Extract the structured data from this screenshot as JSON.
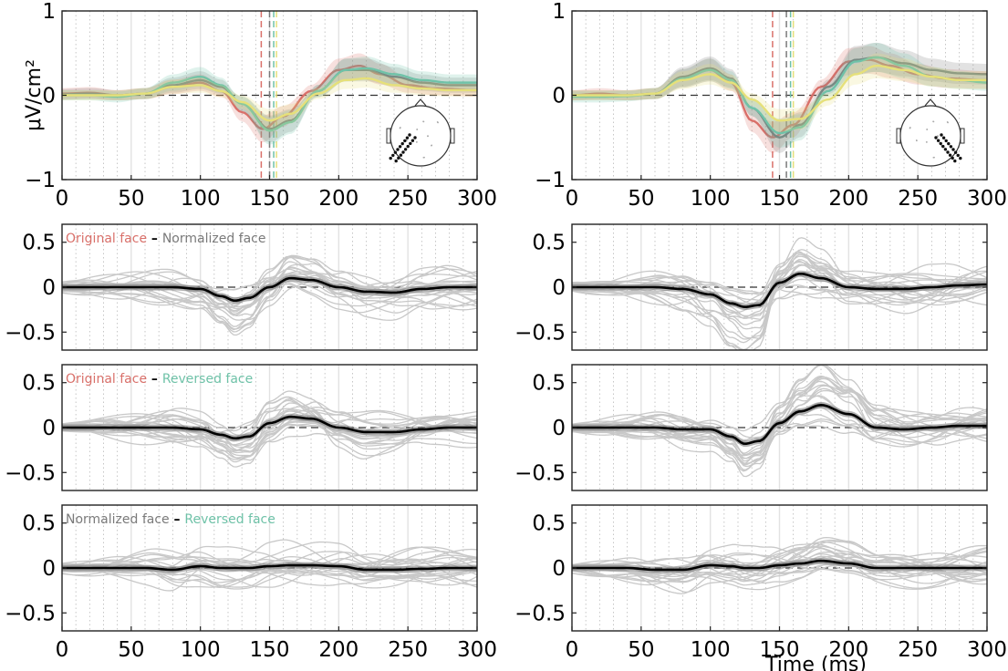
{
  "figure": {
    "ylabel_top": "μV/cm²",
    "xlabel_bottom": "Time (ms)",
    "colors": {
      "original": "#d9706a",
      "normalized": "#7a7a7a",
      "reversed": "#6fc2a8",
      "yellow": "#e6e07a",
      "individual": "#c8c8c8",
      "mean": "#000000"
    }
  },
  "chart_data": [
    {
      "type": "line",
      "panel": "top-left",
      "xlim": [
        0,
        300
      ],
      "ylim": [
        -1,
        1
      ],
      "xticks": [
        0,
        50,
        100,
        150,
        200,
        250,
        300
      ],
      "yticks": [
        -1,
        0,
        1
      ],
      "ylabel": "μV/cm²",
      "vlines": [
        144,
        150,
        153,
        155
      ],
      "series": [
        {
          "color": "original",
          "x": [
            0,
            20,
            40,
            60,
            80,
            100,
            115,
            130,
            145,
            160,
            180,
            200,
            215,
            230,
            250,
            270,
            300
          ],
          "y": [
            0.02,
            0.03,
            0.0,
            0.02,
            0.1,
            0.15,
            0.05,
            -0.2,
            -0.4,
            -0.25,
            0.05,
            0.3,
            0.35,
            0.25,
            0.12,
            0.08,
            0.06
          ]
        },
        {
          "color": "normalized",
          "x": [
            0,
            20,
            40,
            60,
            80,
            100,
            115,
            130,
            150,
            165,
            185,
            205,
            220,
            240,
            260,
            280,
            300
          ],
          "y": [
            0.01,
            0.02,
            0.0,
            0.02,
            0.12,
            0.18,
            0.1,
            -0.1,
            -0.4,
            -0.3,
            0.05,
            0.3,
            0.3,
            0.22,
            0.15,
            0.12,
            0.12
          ]
        },
        {
          "color": "reversed",
          "x": [
            0,
            20,
            40,
            60,
            80,
            100,
            115,
            130,
            150,
            165,
            185,
            205,
            220,
            240,
            260,
            280,
            300
          ],
          "y": [
            0.0,
            0.0,
            -0.02,
            0.02,
            0.15,
            0.22,
            0.12,
            -0.1,
            -0.42,
            -0.32,
            0.05,
            0.3,
            0.32,
            0.25,
            0.18,
            0.15,
            0.15
          ]
        },
        {
          "color": "yellow",
          "x": [
            0,
            20,
            40,
            60,
            80,
            100,
            115,
            130,
            150,
            165,
            185,
            205,
            220,
            240,
            260,
            280,
            300
          ],
          "y": [
            0.0,
            0.0,
            0.0,
            0.02,
            0.1,
            0.12,
            0.05,
            -0.08,
            -0.3,
            -0.22,
            0.02,
            0.18,
            0.2,
            0.12,
            0.08,
            0.06,
            0.06
          ]
        }
      ],
      "inset": "headplot-left"
    },
    {
      "type": "line",
      "panel": "top-right",
      "xlim": [
        0,
        300
      ],
      "ylim": [
        -1,
        1
      ],
      "xticks": [
        0,
        50,
        100,
        150,
        200,
        250,
        300
      ],
      "yticks": [
        -1,
        0,
        1
      ],
      "vlines": [
        145,
        155,
        158,
        160
      ],
      "series": [
        {
          "color": "original",
          "x": [
            0,
            20,
            40,
            60,
            80,
            100,
            115,
            130,
            145,
            160,
            180,
            200,
            215,
            230,
            250,
            270,
            300
          ],
          "y": [
            0.0,
            0.02,
            0.0,
            0.02,
            0.2,
            0.3,
            0.15,
            -0.3,
            -0.5,
            -0.35,
            0.1,
            0.4,
            0.42,
            0.35,
            0.25,
            0.2,
            0.18
          ]
        },
        {
          "color": "normalized",
          "x": [
            0,
            20,
            40,
            60,
            80,
            100,
            115,
            130,
            150,
            165,
            185,
            205,
            220,
            240,
            260,
            280,
            300
          ],
          "y": [
            0.0,
            0.0,
            0.0,
            0.02,
            0.22,
            0.32,
            0.2,
            -0.15,
            -0.5,
            -0.35,
            0.1,
            0.42,
            0.45,
            0.38,
            0.3,
            0.26,
            0.25
          ]
        },
        {
          "color": "reversed",
          "x": [
            0,
            20,
            40,
            60,
            80,
            100,
            115,
            130,
            150,
            165,
            185,
            205,
            220,
            240,
            260,
            280,
            300
          ],
          "y": [
            -0.02,
            -0.02,
            -0.01,
            0.02,
            0.2,
            0.3,
            0.18,
            -0.15,
            -0.45,
            -0.38,
            0.05,
            0.4,
            0.45,
            0.35,
            0.22,
            0.18,
            0.15
          ]
        },
        {
          "color": "yellow",
          "x": [
            0,
            20,
            40,
            60,
            80,
            100,
            115,
            130,
            150,
            165,
            185,
            205,
            220,
            240,
            260,
            280,
            300
          ],
          "y": [
            0.0,
            0.0,
            0.0,
            0.02,
            0.18,
            0.25,
            0.15,
            -0.05,
            -0.3,
            -0.28,
            -0.05,
            0.25,
            0.35,
            0.3,
            0.22,
            0.18,
            0.18
          ]
        }
      ],
      "inset": "headplot-right"
    },
    {
      "type": "line",
      "panel": "row2-left",
      "xlim": [
        0,
        300
      ],
      "ylim": [
        -0.7,
        0.7
      ],
      "yticks": [
        -0.5,
        0,
        0.5
      ],
      "legend": [
        "Original face",
        "Normalized face"
      ],
      "mean": {
        "x": [
          0,
          20,
          40,
          60,
          80,
          100,
          115,
          125,
          135,
          150,
          165,
          180,
          200,
          220,
          240,
          260,
          280,
          300
        ],
        "y": [
          0.0,
          0.0,
          0.0,
          0.0,
          0.0,
          -0.02,
          -0.1,
          -0.15,
          -0.12,
          0.0,
          0.1,
          0.08,
          0.0,
          -0.05,
          -0.06,
          -0.02,
          0.0,
          0.0
        ]
      }
    },
    {
      "type": "line",
      "panel": "row2-right",
      "xlim": [
        0,
        300
      ],
      "ylim": [
        -0.7,
        0.7
      ],
      "yticks": [
        -0.5,
        0,
        0.5
      ],
      "mean": {
        "x": [
          0,
          20,
          40,
          60,
          80,
          100,
          115,
          125,
          135,
          150,
          165,
          180,
          200,
          220,
          240,
          260,
          280,
          300
        ],
        "y": [
          0.0,
          0.0,
          0.0,
          0.0,
          -0.02,
          -0.08,
          -0.18,
          -0.22,
          -0.2,
          0.05,
          0.15,
          0.1,
          0.0,
          -0.02,
          -0.02,
          0.0,
          0.02,
          0.03
        ]
      }
    },
    {
      "type": "line",
      "panel": "row3-left",
      "xlim": [
        0,
        300
      ],
      "ylim": [
        -0.7,
        0.7
      ],
      "yticks": [
        -0.5,
        0,
        0.5
      ],
      "legend": [
        "Original face",
        "Reversed face"
      ],
      "mean": {
        "x": [
          0,
          20,
          40,
          60,
          80,
          100,
          115,
          125,
          135,
          150,
          165,
          180,
          200,
          220,
          240,
          260,
          280,
          300
        ],
        "y": [
          0.0,
          0.0,
          0.0,
          0.0,
          0.0,
          -0.02,
          -0.08,
          -0.12,
          -0.1,
          0.05,
          0.12,
          0.1,
          0.0,
          -0.05,
          -0.05,
          -0.02,
          0.0,
          0.0
        ]
      }
    },
    {
      "type": "line",
      "panel": "row3-right",
      "xlim": [
        0,
        300
      ],
      "ylim": [
        -0.7,
        0.7
      ],
      "yticks": [
        -0.5,
        0,
        0.5
      ],
      "mean": {
        "x": [
          0,
          20,
          40,
          60,
          80,
          100,
          115,
          125,
          135,
          150,
          165,
          180,
          200,
          220,
          240,
          260,
          280,
          300
        ],
        "y": [
          0.0,
          0.0,
          0.0,
          0.0,
          -0.02,
          -0.02,
          -0.1,
          -0.18,
          -0.15,
          0.05,
          0.18,
          0.25,
          0.15,
          0.0,
          -0.02,
          0.0,
          0.02,
          0.02
        ]
      }
    },
    {
      "type": "line",
      "panel": "row4-left",
      "xlim": [
        0,
        300
      ],
      "ylim": [
        -0.7,
        0.7
      ],
      "yticks": [
        -0.5,
        0,
        0.5
      ],
      "xticks": [
        0,
        50,
        100,
        150,
        200,
        250,
        300
      ],
      "legend": [
        "Normalized face",
        "Reversed face"
      ],
      "mean": {
        "x": [
          0,
          20,
          40,
          60,
          80,
          100,
          115,
          125,
          135,
          150,
          165,
          180,
          200,
          220,
          240,
          260,
          280,
          300
        ],
        "y": [
          0.0,
          0.0,
          0.0,
          0.0,
          -0.02,
          0.02,
          0.0,
          0.0,
          0.0,
          0.02,
          0.03,
          0.03,
          0.02,
          -0.02,
          -0.02,
          -0.01,
          0.0,
          0.0
        ]
      }
    },
    {
      "type": "line",
      "panel": "row4-right",
      "xlim": [
        0,
        300
      ],
      "ylim": [
        -0.7,
        0.7
      ],
      "yticks": [
        -0.5,
        0,
        0.5
      ],
      "xticks": [
        0,
        50,
        100,
        150,
        200,
        250,
        300
      ],
      "xlabel": "Time (ms)",
      "mean": {
        "x": [
          0,
          20,
          40,
          60,
          80,
          100,
          115,
          125,
          135,
          150,
          165,
          180,
          200,
          220,
          240,
          260,
          280,
          300
        ],
        "y": [
          0.0,
          0.0,
          0.0,
          -0.02,
          -0.02,
          0.03,
          0.02,
          0.0,
          0.0,
          0.03,
          0.05,
          0.08,
          0.05,
          0.0,
          0.0,
          0.0,
          0.0,
          0.0
        ]
      }
    }
  ]
}
